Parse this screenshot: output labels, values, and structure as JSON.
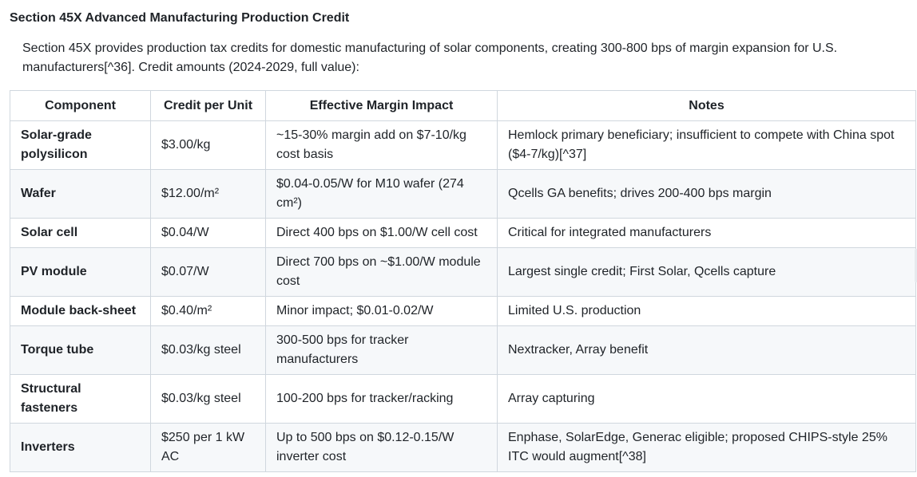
{
  "section": {
    "heading": "Section 45X Advanced Manufacturing Production Credit",
    "intro": "Section 45X provides production tax credits for domestic manufacturing of solar components, creating 300-800 bps of margin expansion for U.S. manufacturers[^36]. Credit amounts (2024-2029, full value):"
  },
  "table": {
    "headers": {
      "component": "Component",
      "credit": "Credit per Unit",
      "impact": "Effective Margin Impact",
      "notes": "Notes"
    },
    "rows": [
      {
        "component": "Solar-grade polysilicon",
        "credit": "$3.00/kg",
        "impact": "~15-30% margin add on $7-10/kg cost basis",
        "notes": "Hemlock primary beneficiary; insufficient to compete with China spot ($4-7/kg)[^37]"
      },
      {
        "component": "Wafer",
        "credit": "$12.00/m²",
        "impact": "$0.04-0.05/W for M10 wafer (274 cm²)",
        "notes": "Qcells GA benefits; drives 200-400 bps margin"
      },
      {
        "component": "Solar cell",
        "credit": "$0.04/W",
        "impact": "Direct 400 bps on $1.00/W cell cost",
        "notes": "Critical for integrated manufacturers"
      },
      {
        "component": "PV module",
        "credit": "$0.07/W",
        "impact": "Direct 700 bps on ~$1.00/W module cost",
        "notes": "Largest single credit; First Solar, Qcells capture"
      },
      {
        "component": "Module back-sheet",
        "credit": "$0.40/m²",
        "impact": "Minor impact; $0.01-0.02/W",
        "notes": "Limited U.S. production"
      },
      {
        "component": "Torque tube",
        "credit": "$0.03/kg steel",
        "impact": "300-500 bps for tracker manufacturers",
        "notes": "Nextracker, Array benefit"
      },
      {
        "component": "Structural fasteners",
        "credit": "$0.03/kg steel",
        "impact": "100-200 bps for tracker/racking",
        "notes": "Array capturing"
      },
      {
        "component": "Inverters",
        "credit": "$250 per 1 kW AC",
        "impact": "Up to 500 bps on $0.12-0.15/W inverter cost",
        "notes": "Enphase, SolarEdge, Generac eligible; proposed CHIPS-style 25% ITC would augment[^38]"
      }
    ]
  }
}
